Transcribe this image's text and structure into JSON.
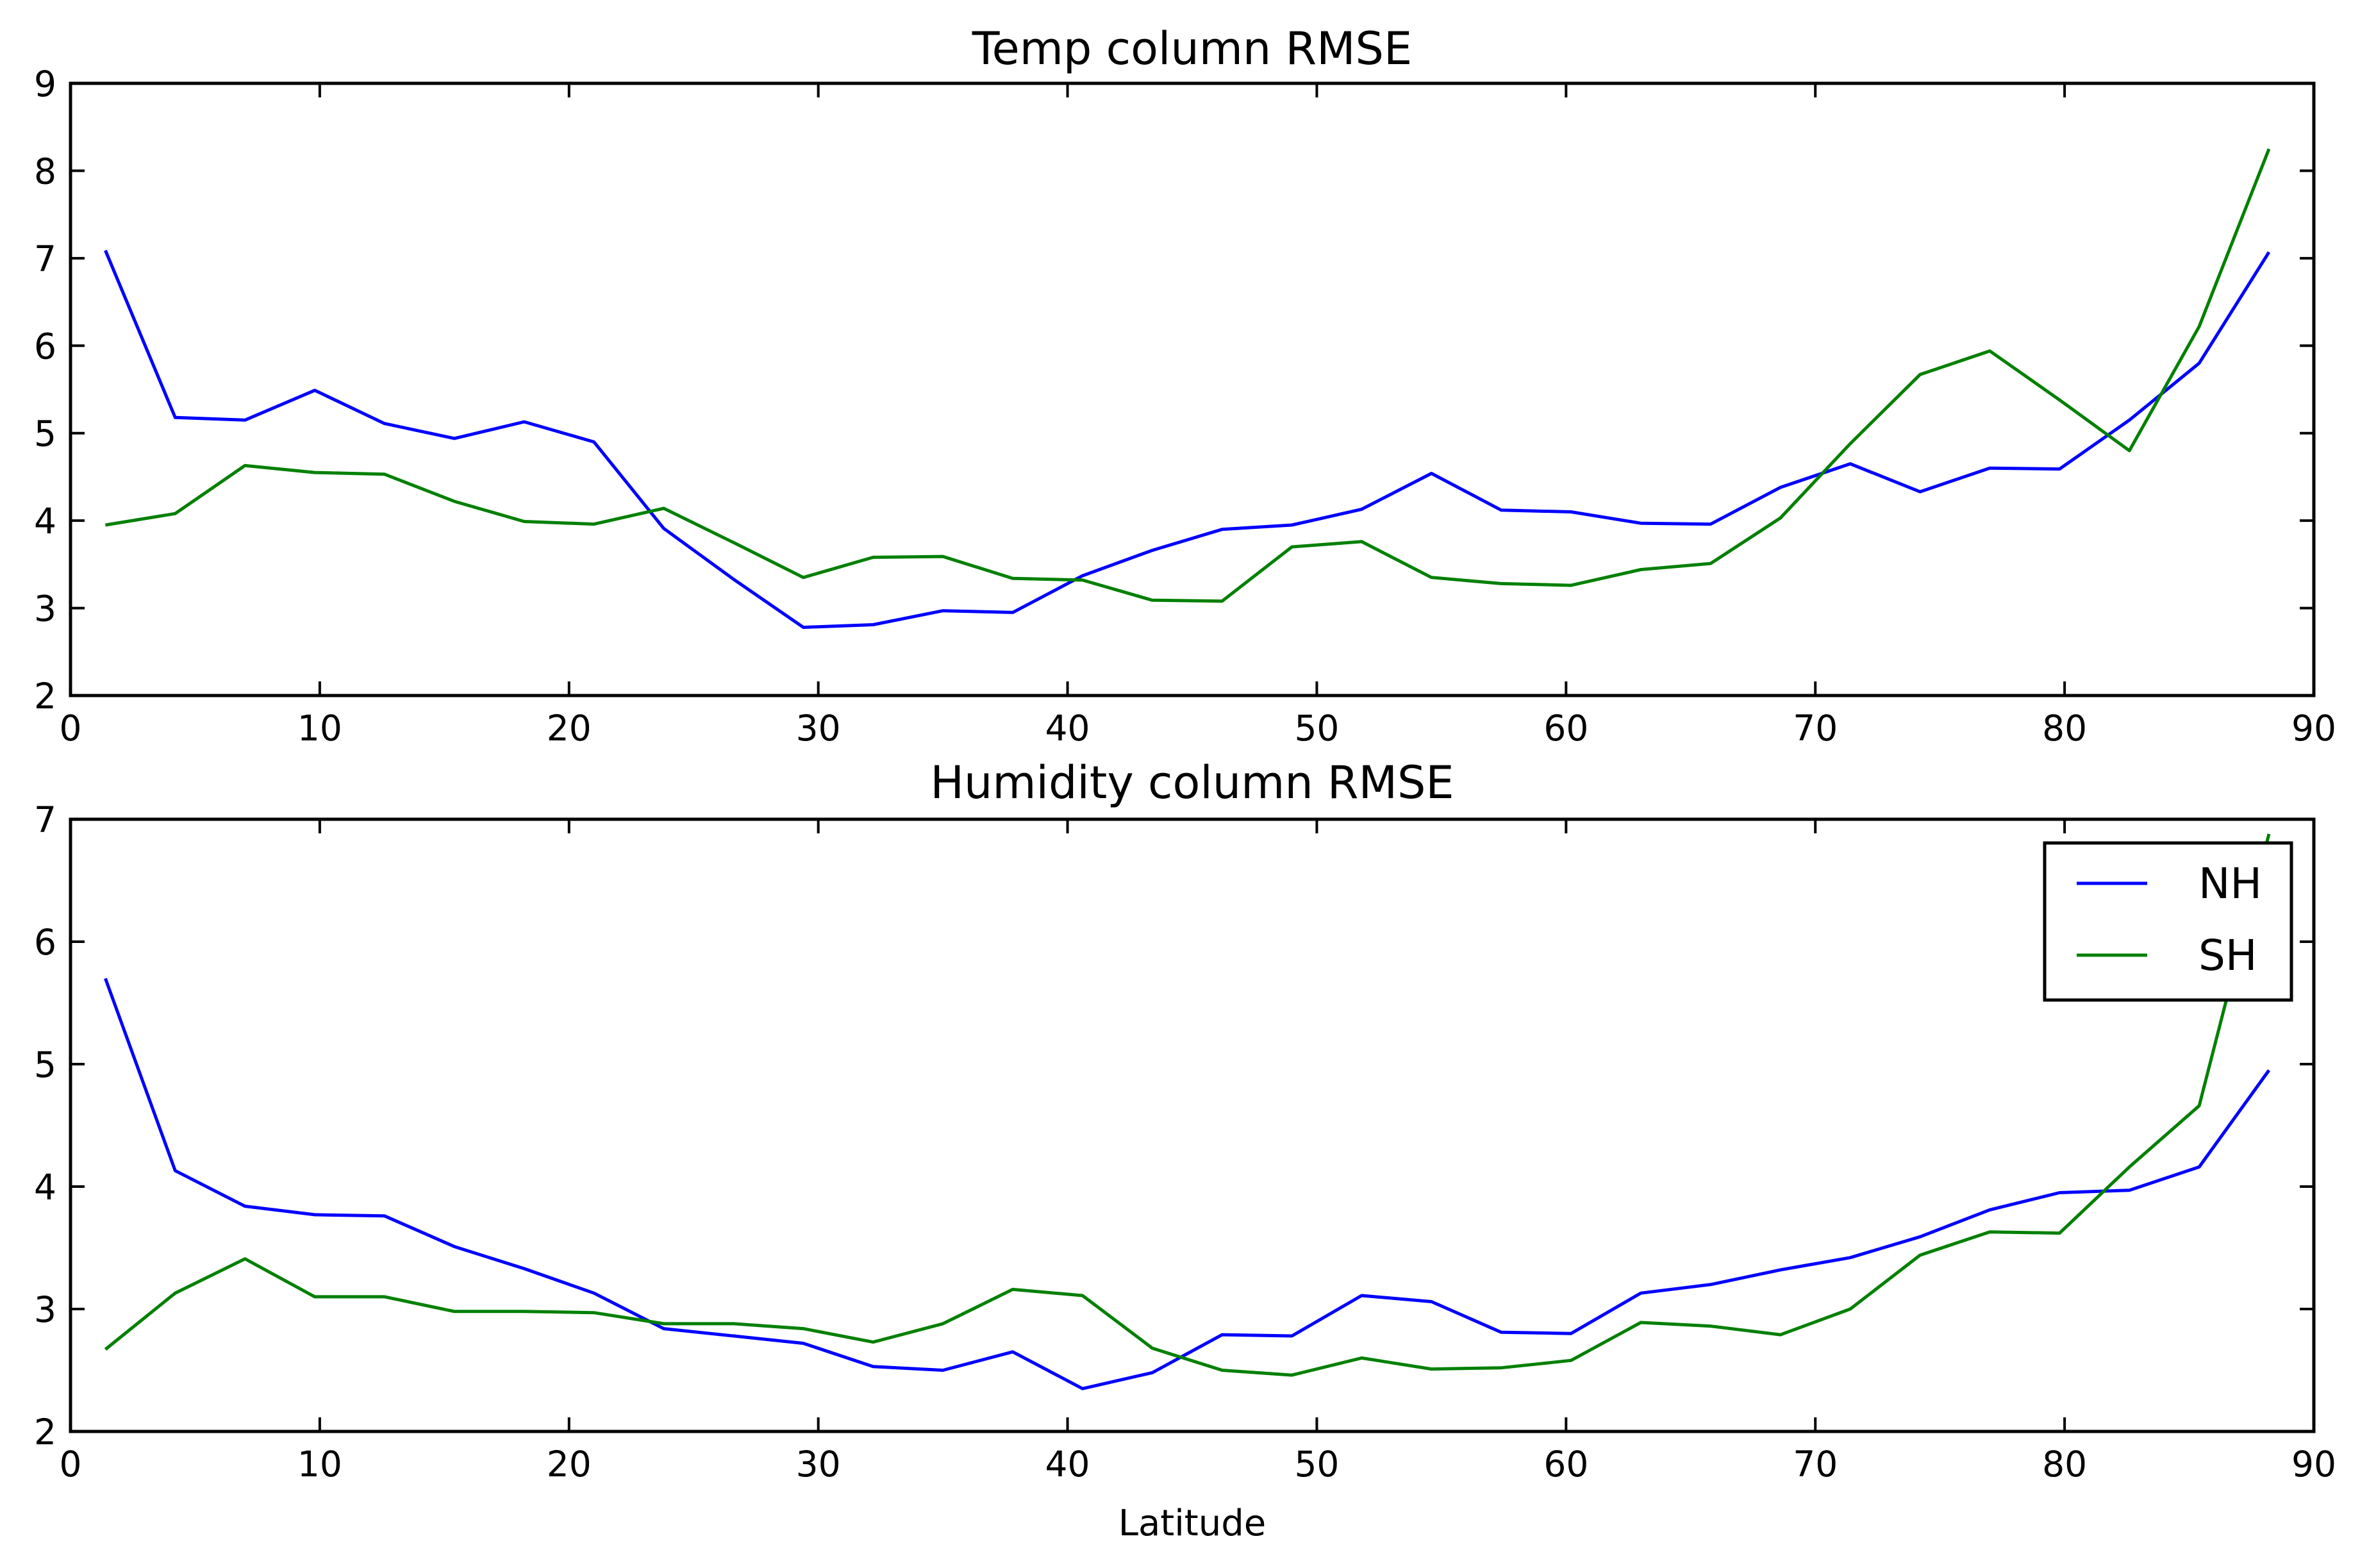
{
  "chart_data": [
    {
      "type": "line",
      "title": "Temp column RMSE",
      "xlabel": "",
      "ylabel": "",
      "xlim": [
        0,
        90
      ],
      "ylim": [
        2,
        9
      ],
      "xticks": [
        0,
        10,
        20,
        30,
        40,
        50,
        60,
        70,
        80,
        90
      ],
      "yticks": [
        2,
        3,
        4,
        5,
        6,
        7,
        8,
        9
      ],
      "grid": false,
      "legend": false,
      "x": [
        1.4,
        4.2,
        7.0,
        9.8,
        12.6,
        15.4,
        18.2,
        21.0,
        23.8,
        26.6,
        29.4,
        32.2,
        35.0,
        37.8,
        40.6,
        43.4,
        46.2,
        49.0,
        51.8,
        54.6,
        57.4,
        60.2,
        63.0,
        65.8,
        68.6,
        71.4,
        74.2,
        77.0,
        79.8,
        82.6,
        85.4,
        88.2
      ],
      "series": [
        {
          "name": "NH",
          "color": "#0000ff",
          "values": [
            7.09,
            5.18,
            5.15,
            5.49,
            5.11,
            4.94,
            5.13,
            4.9,
            3.91,
            3.33,
            2.78,
            2.81,
            2.97,
            2.95,
            3.37,
            3.66,
            3.9,
            3.95,
            4.13,
            4.54,
            4.12,
            4.1,
            3.97,
            3.96,
            4.38,
            4.65,
            4.33,
            4.6,
            4.59,
            5.15,
            5.8,
            7.07
          ]
        },
        {
          "name": "SH",
          "color": "#008000",
          "values": [
            3.95,
            4.08,
            4.63,
            4.55,
            4.53,
            4.22,
            3.99,
            3.96,
            4.14,
            3.75,
            3.35,
            3.58,
            3.59,
            3.34,
            3.32,
            3.09,
            3.08,
            3.7,
            3.76,
            3.35,
            3.28,
            3.26,
            3.44,
            3.51,
            4.03,
            4.88,
            5.67,
            5.94,
            5.38,
            4.8,
            6.22,
            8.25
          ]
        }
      ]
    },
    {
      "type": "line",
      "title": "Humidity column RMSE",
      "xlabel": "Latitude",
      "ylabel": "",
      "xlim": [
        0,
        90
      ],
      "ylim": [
        2,
        7
      ],
      "xticks": [
        0,
        10,
        20,
        30,
        40,
        50,
        60,
        70,
        80,
        90
      ],
      "yticks": [
        2,
        3,
        4,
        5,
        6,
        7
      ],
      "grid": false,
      "legend": "top-right",
      "x": [
        1.4,
        4.2,
        7.0,
        9.8,
        12.6,
        15.4,
        18.2,
        21.0,
        23.8,
        26.6,
        29.4,
        32.2,
        35.0,
        37.8,
        40.6,
        43.4,
        46.2,
        49.0,
        51.8,
        54.6,
        57.4,
        60.2,
        63.0,
        65.8,
        68.6,
        71.4,
        74.2,
        77.0,
        79.8,
        82.6,
        85.4,
        88.2
      ],
      "series": [
        {
          "name": "NH",
          "color": "#0000ff",
          "values": [
            5.7,
            4.13,
            3.84,
            3.77,
            3.76,
            3.51,
            3.33,
            3.13,
            2.84,
            2.78,
            2.72,
            2.53,
            2.5,
            2.65,
            2.35,
            2.48,
            2.79,
            2.78,
            3.11,
            3.06,
            2.81,
            2.8,
            3.13,
            3.2,
            3.32,
            3.42,
            3.59,
            3.81,
            3.95,
            3.97,
            4.16,
            4.95
          ]
        },
        {
          "name": "SH",
          "color": "#008000",
          "values": [
            2.67,
            3.13,
            3.41,
            3.1,
            3.1,
            2.98,
            2.98,
            2.97,
            2.88,
            2.88,
            2.84,
            2.73,
            2.88,
            3.16,
            3.11,
            2.68,
            2.5,
            2.46,
            2.6,
            2.51,
            2.52,
            2.58,
            2.89,
            2.86,
            2.79,
            3.0,
            3.44,
            3.63,
            3.62,
            4.16,
            4.66,
            6.88
          ]
        }
      ]
    }
  ]
}
